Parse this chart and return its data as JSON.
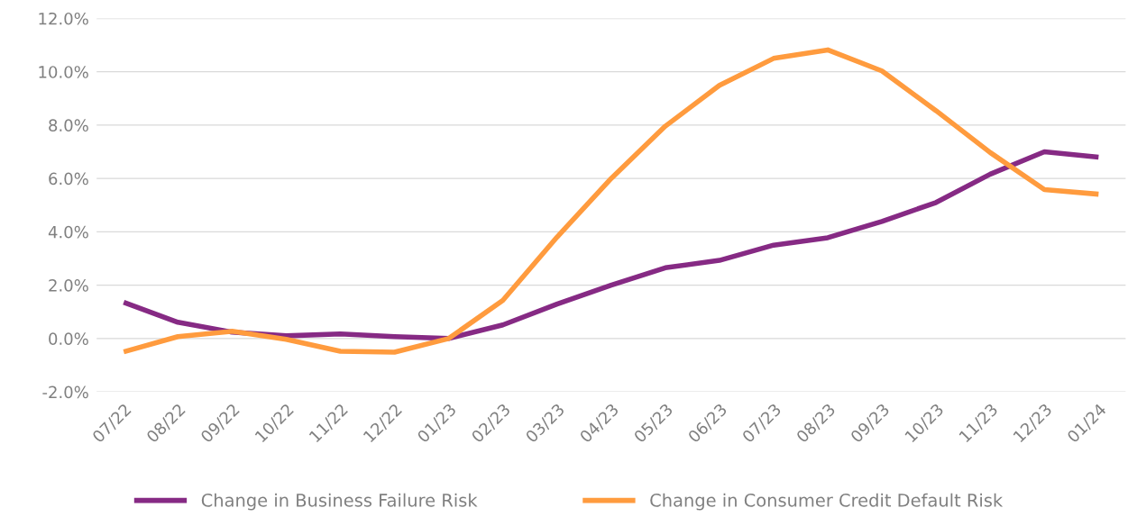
{
  "chart_data": {
    "type": "line",
    "categories": [
      "07/22",
      "08/22",
      "09/22",
      "10/22",
      "11/22",
      "12/22",
      "01/23",
      "02/23",
      "03/23",
      "04/23",
      "05/23",
      "06/23",
      "07/23",
      "08/23",
      "09/23",
      "10/23",
      "11/23",
      "12/23",
      "01/24"
    ],
    "series": [
      {
        "name": "Change in Business Failure Risk",
        "color": "#862a84",
        "values": [
          1.36,
          0.61,
          0.24,
          0.1,
          0.17,
          0.07,
          0.0,
          0.51,
          1.29,
          2.0,
          2.65,
          2.93,
          3.5,
          3.78,
          4.39,
          5.1,
          6.16,
          7.0,
          6.8
        ]
      },
      {
        "name": "Change in Consumer Credit Default Risk",
        "color": "#ff9b3e",
        "values": [
          -0.5,
          0.07,
          0.27,
          -0.03,
          -0.48,
          -0.51,
          0.0,
          1.43,
          3.8,
          6.0,
          7.96,
          9.49,
          10.5,
          10.82,
          10.03,
          8.54,
          6.97,
          5.58,
          5.41
        ]
      }
    ],
    "ylim": [
      -2,
      12
    ],
    "yticks": [
      {
        "value": -2,
        "label": "-2.0%"
      },
      {
        "value": 0,
        "label": "0.0%"
      },
      {
        "value": 2,
        "label": "2.0%"
      },
      {
        "value": 4,
        "label": "4.0%"
      },
      {
        "value": 6,
        "label": "6.0%"
      },
      {
        "value": 8,
        "label": "8.0%"
      },
      {
        "value": 10,
        "label": "10.0%"
      },
      {
        "value": 12,
        "label": "12.0%"
      }
    ],
    "grid": "y",
    "legend": "bottom",
    "marker": "none",
    "line_style": "solid"
  }
}
